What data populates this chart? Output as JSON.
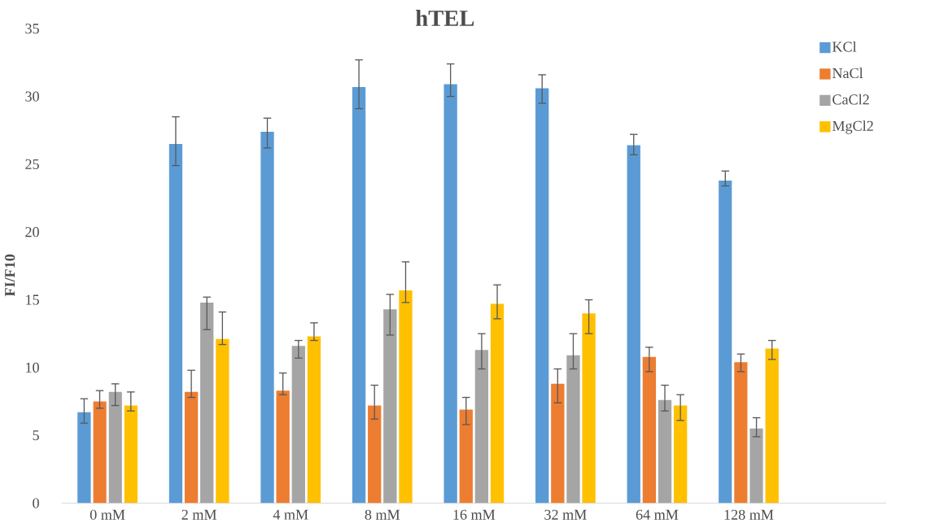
{
  "chart_data": {
    "type": "bar",
    "title": "hTEL",
    "ylabel": "FI/F10",
    "categories": [
      "0 mM",
      "2 mM",
      "4 mM",
      "8 mM",
      "16 mM",
      "32 mM",
      "64 mM",
      "128 mM",
      null
    ],
    "series": [
      {
        "name": "KCl",
        "color": "#5b9bd5",
        "values": [
          6.7,
          26.5,
          27.4,
          30.7,
          30.9,
          30.6,
          26.4,
          23.8,
          null
        ],
        "errors": [
          [
            5.9,
            7.7
          ],
          [
            24.9,
            28.5
          ],
          [
            26.2,
            28.4
          ],
          [
            29.1,
            32.7
          ],
          [
            30.0,
            32.4
          ],
          [
            29.5,
            31.6
          ],
          [
            25.7,
            27.2
          ],
          [
            23.4,
            24.5
          ],
          null
        ]
      },
      {
        "name": "NaCl",
        "color": "#ed7d31",
        "values": [
          7.5,
          8.2,
          8.3,
          7.2,
          6.9,
          8.8,
          10.8,
          10.4,
          null
        ],
        "errors": [
          [
            7.0,
            8.3
          ],
          [
            7.8,
            9.8
          ],
          [
            8.0,
            9.6
          ],
          [
            6.2,
            8.7
          ],
          [
            5.8,
            7.8
          ],
          [
            7.4,
            9.9
          ],
          [
            9.7,
            11.5
          ],
          [
            9.7,
            11.0
          ],
          null
        ]
      },
      {
        "name": "CaCl2",
        "color": "#a5a5a5",
        "values": [
          8.2,
          14.8,
          11.6,
          14.3,
          11.3,
          10.9,
          7.6,
          5.5,
          null
        ],
        "errors": [
          [
            7.2,
            8.8
          ],
          [
            12.8,
            15.2
          ],
          [
            10.7,
            12.0
          ],
          [
            12.4,
            15.4
          ],
          [
            9.9,
            12.5
          ],
          [
            9.9,
            12.5
          ],
          [
            6.8,
            8.7
          ],
          [
            4.9,
            6.3
          ],
          null
        ]
      },
      {
        "name": "MgCl2",
        "color": "#ffc000",
        "values": [
          7.2,
          12.1,
          12.3,
          15.7,
          14.7,
          14.0,
          7.2,
          11.4,
          null
        ],
        "errors": [
          [
            6.8,
            8.2
          ],
          [
            11.7,
            14.1
          ],
          [
            12.0,
            13.3
          ],
          [
            14.8,
            17.8
          ],
          [
            13.6,
            16.1
          ],
          [
            12.5,
            15.0
          ],
          [
            6.1,
            8.0
          ],
          [
            10.6,
            12.0
          ],
          null
        ]
      }
    ],
    "ylim": [
      0,
      35
    ],
    "yticks": [
      0,
      5,
      10,
      15,
      20,
      25,
      30,
      35
    ],
    "legend": "top right"
  }
}
